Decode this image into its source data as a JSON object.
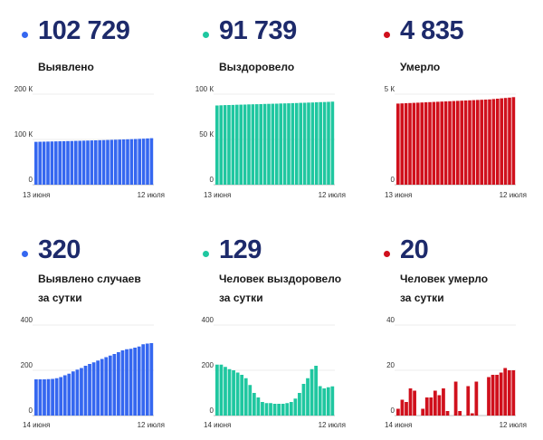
{
  "panels": [
    {
      "id": "detected-total",
      "value_text": "102 729",
      "label_lines": [
        "Выявлено"
      ],
      "color": "#3567f0",
      "chart_data": {
        "type": "bar",
        "x_start_label": "13 июня",
        "x_end_label": "12 июля",
        "ylim": [
          0,
          200000
        ],
        "yticks": [
          0,
          100000,
          200000
        ],
        "ytick_labels": [
          "0",
          "100 К",
          "200 К"
        ],
        "values": [
          94700,
          94900,
          95100,
          95300,
          95500,
          95700,
          95900,
          96100,
          96300,
          96500,
          96800,
          97000,
          97300,
          97500,
          97800,
          98000,
          98300,
          98500,
          98800,
          99100,
          99400,
          99700,
          100000,
          100300,
          100600,
          100900,
          101300,
          101700,
          102200,
          102729
        ]
      }
    },
    {
      "id": "recovered-total",
      "value_text": "91 739",
      "label_lines": [
        "Выздоровело"
      ],
      "color": "#1fc7a0",
      "chart_data": {
        "type": "bar",
        "x_start_label": "13 июня",
        "x_end_label": "12 июля",
        "ylim": [
          0,
          100000
        ],
        "yticks": [
          0,
          50000,
          100000
        ],
        "ytick_labels": [
          "0",
          "50 К",
          "100 К"
        ],
        "values": [
          87500,
          87700,
          87900,
          88000,
          88100,
          88300,
          88400,
          88500,
          88700,
          88800,
          88900,
          89000,
          89200,
          89300,
          89400,
          89500,
          89700,
          89800,
          89900,
          90100,
          90200,
          90400,
          90500,
          90700,
          90800,
          91000,
          91200,
          91300,
          91500,
          91739
        ]
      }
    },
    {
      "id": "deaths-total",
      "value_text": "4 835",
      "label_lines": [
        "Умерло"
      ],
      "color": "#d0101c",
      "chart_data": {
        "type": "bar",
        "x_start_label": "13 июня",
        "x_end_label": "12 июля",
        "ylim": [
          0,
          5000
        ],
        "yticks": [
          0,
          5000
        ],
        "ytick_labels": [
          "0",
          "5 К"
        ],
        "values": [
          4480,
          4490,
          4500,
          4510,
          4520,
          4530,
          4540,
          4550,
          4560,
          4570,
          4580,
          4590,
          4600,
          4610,
          4620,
          4630,
          4640,
          4650,
          4660,
          4670,
          4680,
          4690,
          4700,
          4710,
          4730,
          4750,
          4770,
          4790,
          4810,
          4835
        ]
      }
    },
    {
      "id": "detected-daily",
      "value_text": "320",
      "label_lines": [
        "Выявлено случаев",
        "за сутки"
      ],
      "color": "#3567f0",
      "chart_data": {
        "type": "bar",
        "x_start_label": "14 июня",
        "x_end_label": "12 июля",
        "ylim": [
          0,
          400
        ],
        "yticks": [
          0,
          200,
          400
        ],
        "ytick_labels": [
          "0",
          "200",
          "400"
        ],
        "values": [
          160,
          160,
          160,
          161,
          162,
          165,
          170,
          178,
          185,
          195,
          203,
          210,
          220,
          228,
          235,
          243,
          250,
          258,
          265,
          272,
          280,
          288,
          293,
          295,
          300,
          305,
          315,
          318,
          320
        ]
      }
    },
    {
      "id": "recovered-daily",
      "value_text": "129",
      "label_lines": [
        "Человек выздоровело",
        "за сутки"
      ],
      "color": "#1fc7a0",
      "chart_data": {
        "type": "bar",
        "x_start_label": "14 июня",
        "x_end_label": "12 июля",
        "ylim": [
          0,
          400
        ],
        "yticks": [
          0,
          200,
          400
        ],
        "ytick_labels": [
          "0",
          "200",
          "400"
        ],
        "values": [
          225,
          225,
          215,
          205,
          200,
          190,
          180,
          165,
          135,
          100,
          80,
          60,
          55,
          55,
          52,
          52,
          52,
          55,
          60,
          75,
          100,
          140,
          165,
          205,
          220,
          130,
          120,
          125,
          129
        ]
      }
    },
    {
      "id": "deaths-daily",
      "value_text": "20",
      "label_lines": [
        "Человек умерло",
        "за сутки"
      ],
      "color": "#d0101c",
      "chart_data": {
        "type": "bar",
        "x_start_label": "14 июня",
        "x_end_label": "12 июля",
        "ylim": [
          0,
          40
        ],
        "yticks": [
          0,
          20,
          40
        ],
        "ytick_labels": [
          "0",
          "20",
          "40"
        ],
        "values": [
          3,
          7,
          6,
          12,
          11,
          0,
          3,
          8,
          8,
          11,
          9,
          12,
          2,
          0,
          15,
          2,
          0,
          13,
          1,
          15,
          0,
          0,
          17,
          18,
          18,
          19,
          21,
          20,
          20
        ]
      }
    }
  ]
}
